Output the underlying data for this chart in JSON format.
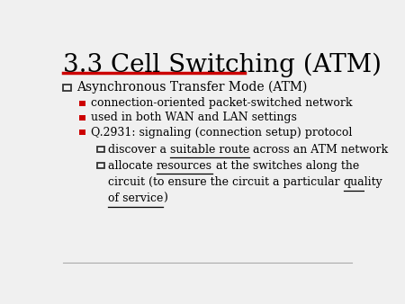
{
  "title": "3.3 Cell Switching (ATM)",
  "background_color": "#f0f0f0",
  "title_color": "#000000",
  "title_fontsize": 20,
  "accent_color": "#cc0000",
  "bullet1_text": "Asynchronous Transfer Mode (ATM)",
  "sub_bullets": [
    "connection-oriented packet-switched network",
    "used in both WAN and LAN settings",
    "Q.2931: signaling (connection setup) protocol"
  ],
  "font_family": "serif",
  "body_fontsize": 9,
  "sq_edge_color": "#333333",
  "red_color": "#cc0000",
  "line_color": "#aaaaaa"
}
